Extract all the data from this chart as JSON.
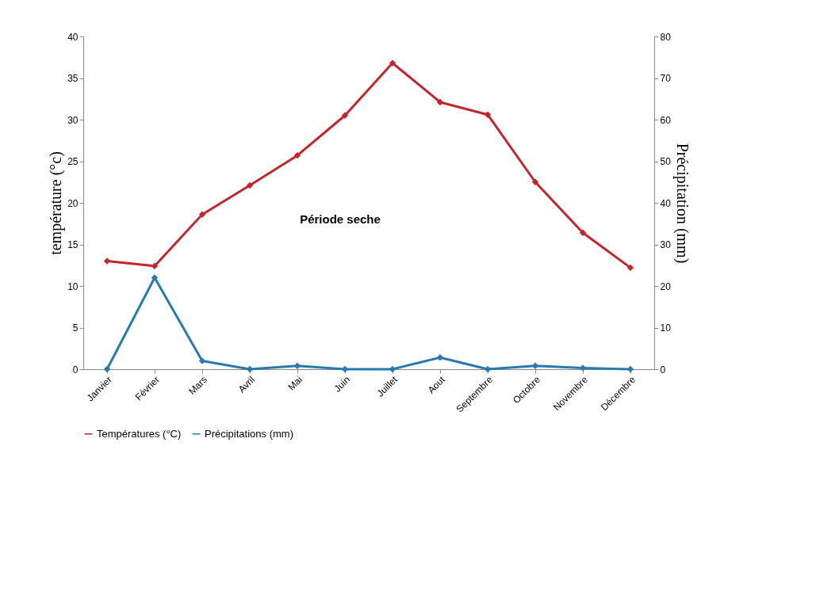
{
  "chart_data": {
    "type": "line",
    "categories": [
      "Janvier",
      "Février",
      "Mars",
      "Avril",
      "Mai",
      "Juin",
      "Juillet",
      "Aout",
      "Septembre",
      "Octobre",
      "Novembre",
      "Décembre"
    ],
    "series": [
      {
        "name": "Températures (°C)",
        "color": "#c0272d",
        "values": [
          13,
          12.4,
          18.6,
          22.1,
          25.7,
          30.5,
          36.8,
          32.1,
          30.6,
          22.5,
          16.4,
          12.2
        ]
      },
      {
        "name": "Précipitations (mm)",
        "color": "#2a7ab0",
        "axis": "y2",
        "values": [
          0,
          22,
          2,
          0,
          0.8,
          0,
          0,
          2.8,
          0,
          0.8,
          0.3,
          0
        ]
      }
    ],
    "ylabel": "température (°c)",
    "y2label": "Précipitation (mm)",
    "ylim": [
      0,
      40
    ],
    "yticks": [
      0,
      5,
      10,
      15,
      20,
      25,
      30,
      35,
      40
    ],
    "y2lim": [
      0,
      80
    ],
    "y2ticks": [
      0,
      10,
      20,
      30,
      40,
      50,
      60,
      70,
      80
    ],
    "annotations": [
      "Période seche"
    ],
    "marker": "diamond",
    "line_style": "solid",
    "grid": false,
    "legend": "bottom"
  }
}
